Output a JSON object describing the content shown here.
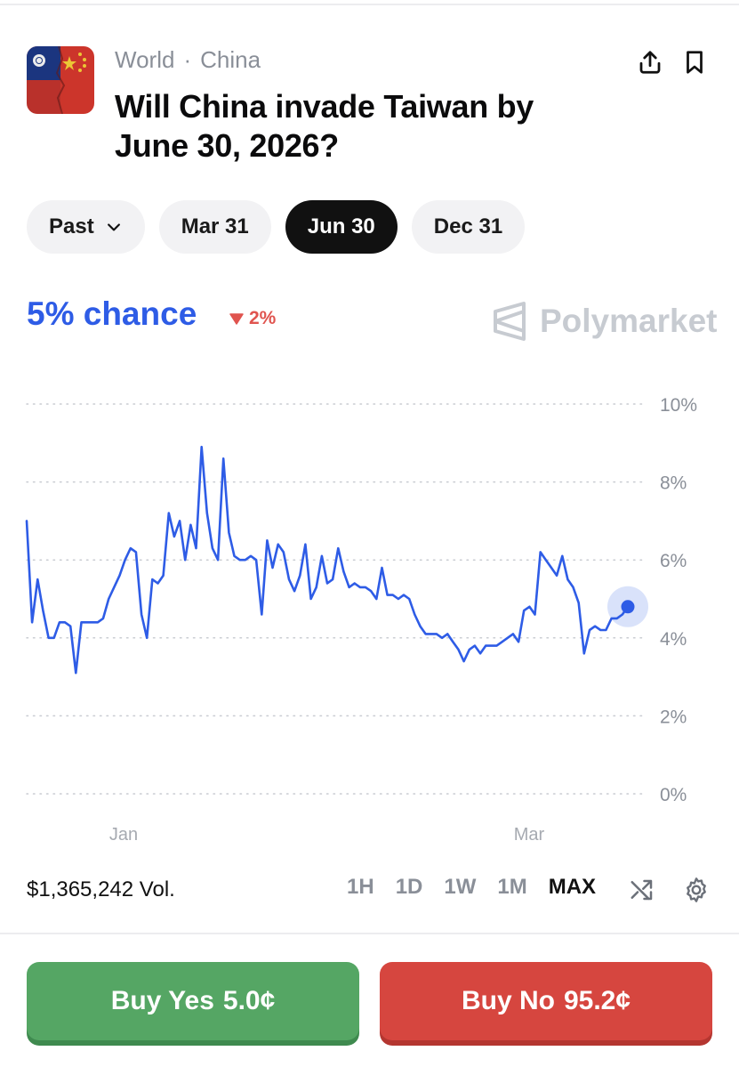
{
  "market": {
    "category": "World",
    "subcategory": "China",
    "title": "Will China invade Taiwan by June 30, 2026?",
    "icon": "taiwan-china-flag-image"
  },
  "header_actions": {
    "share_icon": "share-icon",
    "bookmark_icon": "bookmark-icon"
  },
  "date_tabs": [
    {
      "label": "Past",
      "dropdown": true,
      "active": false
    },
    {
      "label": "Mar 31",
      "active": false
    },
    {
      "label": "Jun 30",
      "active": true
    },
    {
      "label": "Dec 31",
      "active": false
    }
  ],
  "odds": {
    "chance_text": "5% chance",
    "change_text": "2%",
    "change_direction": "down",
    "brand": "Polymarket"
  },
  "chart_data": {
    "type": "line",
    "x_tick_labels": [
      "Jan",
      "Mar"
    ],
    "y_tick_labels": [
      "10%",
      "8%",
      "6%",
      "4%",
      "2%",
      "0%"
    ],
    "ylim": [
      0,
      10
    ],
    "grid": true,
    "grid_style": "dotted",
    "series": [
      {
        "color": "#2e5ce6",
        "values": [
          7.0,
          4.4,
          5.5,
          4.7,
          4.0,
          4.0,
          4.4,
          4.4,
          4.3,
          3.1,
          4.4,
          4.4,
          4.4,
          4.4,
          4.5,
          5.0,
          5.3,
          5.6,
          6.0,
          6.3,
          6.2,
          4.6,
          4.0,
          5.5,
          5.4,
          5.6,
          7.2,
          6.6,
          7.0,
          6.0,
          6.9,
          6.3,
          8.9,
          7.2,
          6.3,
          6.0,
          8.6,
          6.7,
          6.1,
          6.0,
          6.0,
          6.1,
          6.0,
          4.6,
          6.5,
          5.8,
          6.4,
          6.2,
          5.5,
          5.2,
          5.6,
          6.4,
          5.0,
          5.3,
          6.1,
          5.4,
          5.5,
          6.3,
          5.7,
          5.3,
          5.4,
          5.3,
          5.3,
          5.2,
          5.0,
          5.8,
          5.1,
          5.1,
          5.0,
          5.1,
          5.0,
          4.6,
          4.3,
          4.1,
          4.1,
          4.1,
          4.0,
          4.1,
          3.9,
          3.7,
          3.4,
          3.7,
          3.8,
          3.6,
          3.8,
          3.8,
          3.8,
          3.9,
          4.0,
          4.1,
          3.9,
          4.7,
          4.8,
          4.6,
          6.2,
          6.0,
          5.8,
          5.6,
          6.1,
          5.5,
          5.3,
          4.9,
          3.6,
          4.2,
          4.3,
          4.2,
          4.2,
          4.5,
          4.5,
          4.6,
          4.8
        ]
      }
    ],
    "last_value": 4.8
  },
  "footer": {
    "volume": "$1,365,242 Vol.",
    "ranges": [
      {
        "label": "1H",
        "active": false
      },
      {
        "label": "1D",
        "active": false
      },
      {
        "label": "1W",
        "active": false
      },
      {
        "label": "1M",
        "active": false
      },
      {
        "label": "MAX",
        "active": true
      }
    ],
    "shuffle_icon": "shuffle-icon",
    "settings_icon": "gear-icon"
  },
  "actions": {
    "buy_yes_label": "Buy Yes",
    "buy_yes_price": "5.0¢",
    "buy_no_label": "Buy No",
    "buy_no_price": "95.2¢"
  },
  "colors": {
    "accent_blue": "#2e5ce6",
    "down_red": "#e0544f",
    "yes_green": "#55a664",
    "no_red": "#d6463f"
  }
}
